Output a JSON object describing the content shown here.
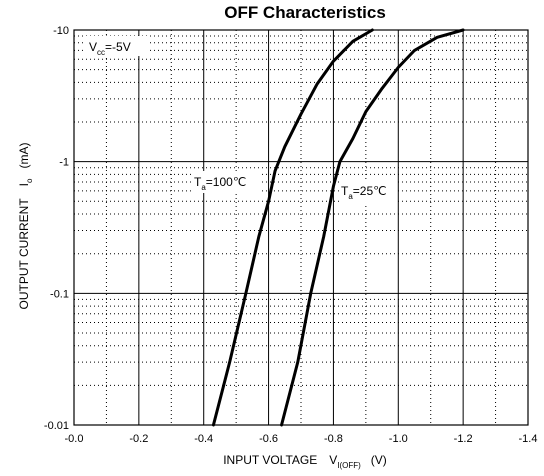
{
  "chart_data": {
    "type": "line",
    "title": "OFF Characteristics",
    "xlabel": {
      "main": "INPUT VOLTAGE",
      "symbol": "V",
      "subscript": "I(OFF)",
      "unit": "(V)"
    },
    "ylabel": {
      "main": "OUTPUT CURRENT",
      "symbol": "I",
      "subscript": "o",
      "unit": "(mA)"
    },
    "xlim": [
      0.0,
      -1.4
    ],
    "ylim": [
      -0.01,
      -10
    ],
    "y_scale": "log",
    "grid": true,
    "x_ticks": [
      0.0,
      -0.2,
      -0.4,
      -0.6,
      -0.8,
      -1.0,
      -1.2,
      -1.4
    ],
    "x_tick_labels": [
      "-0.0",
      "-0.2",
      "-0.4",
      "-0.6",
      "-0.8",
      "-1.0",
      "-1.2",
      "-1.4"
    ],
    "y_ticks": [
      -10,
      -1,
      -0.1,
      -0.01
    ],
    "y_tick_labels": [
      "-10",
      "-1",
      "-0.1",
      "-0.01"
    ],
    "annotations": [
      {
        "id": "vcc",
        "symbol": "V",
        "subscript": "cc",
        "text": "=-5V"
      },
      {
        "id": "ta100",
        "symbol": "T",
        "subscript": "a",
        "text": "=100℃"
      },
      {
        "id": "ta25",
        "symbol": "T",
        "subscript": "a",
        "text": "=25℃"
      }
    ],
    "series": [
      {
        "id": "ta100",
        "color": "#000000",
        "points": [
          {
            "x": -0.43,
            "y": -0.01
          },
          {
            "x": -0.48,
            "y": -0.03
          },
          {
            "x": -0.53,
            "y": -0.1
          },
          {
            "x": -0.57,
            "y": -0.27
          },
          {
            "x": -0.6,
            "y": -0.5
          },
          {
            "x": -0.62,
            "y": -0.85
          },
          {
            "x": -0.65,
            "y": -1.3
          },
          {
            "x": -0.7,
            "y": -2.3
          },
          {
            "x": -0.75,
            "y": -3.9
          },
          {
            "x": -0.8,
            "y": -5.8
          },
          {
            "x": -0.86,
            "y": -8.2
          },
          {
            "x": -0.92,
            "y": -10
          }
        ]
      },
      {
        "id": "ta25",
        "color": "#000000",
        "points": [
          {
            "x": -0.64,
            "y": -0.01
          },
          {
            "x": -0.69,
            "y": -0.03
          },
          {
            "x": -0.73,
            "y": -0.1
          },
          {
            "x": -0.77,
            "y": -0.27
          },
          {
            "x": -0.8,
            "y": -0.65
          },
          {
            "x": -0.82,
            "y": -1.0
          },
          {
            "x": -0.86,
            "y": -1.5
          },
          {
            "x": -0.9,
            "y": -2.4
          },
          {
            "x": -0.95,
            "y": -3.6
          },
          {
            "x": -1.0,
            "y": -5.2
          },
          {
            "x": -1.05,
            "y": -7.0
          },
          {
            "x": -1.12,
            "y": -8.8
          },
          {
            "x": -1.2,
            "y": -10
          }
        ]
      }
    ]
  }
}
